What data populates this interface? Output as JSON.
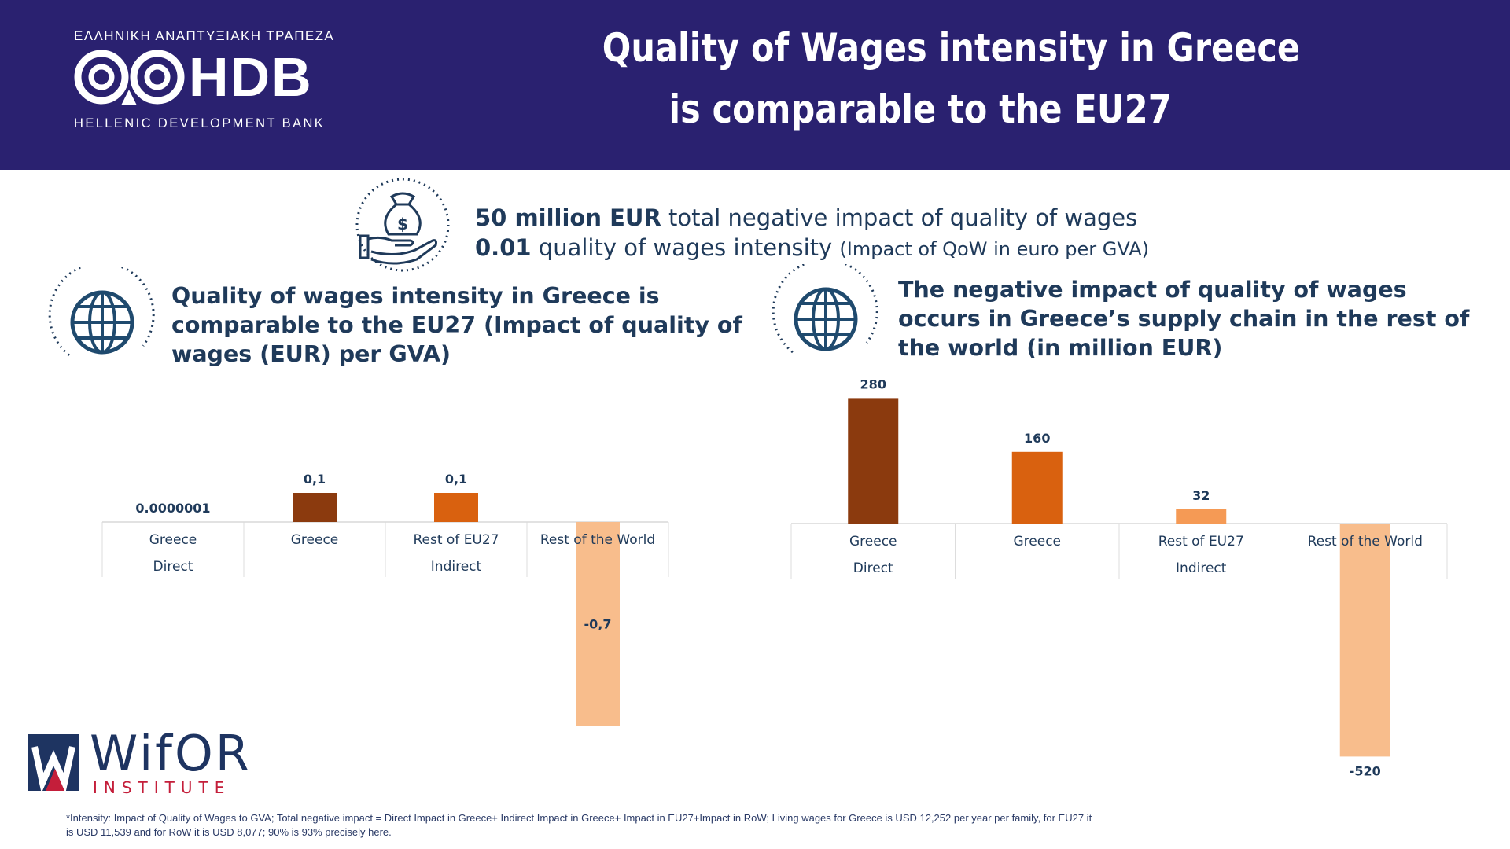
{
  "header": {
    "logo_greek": "ΕΛΛΗΝΙΚΗ ΑΝΑΠΤΥΞΙΑΚΗ ΤΡΑΠΕΖΑ",
    "logo_letters": "HDB",
    "logo_english": "HELLENIC DEVELOPMENT BANK",
    "title_line1": "Quality of Wages intensity in Greece",
    "title_line2": "is comparable to the EU27",
    "background_color": "#2a2170"
  },
  "summary": {
    "icon": "money-bag-hand-icon",
    "line1_bold": "50 million EUR",
    "line1_rest": " total negative impact of quality of wages",
    "line2_bold": "0.01",
    "line2_rest": " quality of wages intensity ",
    "line2_small": "(Impact of QoW in euro per GVA)"
  },
  "left_panel": {
    "icon": "globe-icon",
    "title_line1": "Quality of wages intensity in Greece is",
    "title_line2": "comparable to the EU27 (Impact of quality of",
    "title_line3": "wages (EUR) per GVA)"
  },
  "right_panel": {
    "icon": "globe-icon",
    "title_line1": "The negative impact of quality of wages",
    "title_line2": "occurs in Greece’s supply chain in the rest of",
    "title_line3": "the world (in million EUR)"
  },
  "chart_data": [
    {
      "type": "bar",
      "categories": [
        "Greece",
        "Greece",
        "Rest of EU27",
        "Rest of the World"
      ],
      "groups": [
        {
          "label": "Direct",
          "categories": [
            "Greece"
          ]
        },
        {
          "label": "Indirect",
          "categories": [
            "Greece",
            "Rest of EU27",
            "Rest of the World"
          ]
        }
      ],
      "values": [
        1e-07,
        0.1,
        0.1,
        -0.7
      ],
      "data_labels": [
        "0.0000001",
        "0,1",
        "0,1",
        "-0,7"
      ],
      "colors": [
        "#8b3a0e",
        "#8b3a0e",
        "#d9610f",
        "#f8bd8c"
      ],
      "ylim": [
        -0.7,
        0.1
      ]
    },
    {
      "type": "bar",
      "categories": [
        "Greece",
        "Greece",
        "Rest of EU27",
        "Rest of the World"
      ],
      "groups": [
        {
          "label": "Direct",
          "categories": [
            "Greece"
          ]
        },
        {
          "label": "Indirect",
          "categories": [
            "Greece",
            "Rest of EU27",
            "Rest of the World"
          ]
        }
      ],
      "values": [
        280,
        160,
        32,
        -520
      ],
      "data_labels": [
        "280",
        "160",
        "32",
        "-520"
      ],
      "colors": [
        "#8b3a0e",
        "#d9610f",
        "#f59a55",
        "#f8bd8c"
      ],
      "ylim": [
        -520,
        280
      ]
    }
  ],
  "footer": {
    "wifor_word": "WifOR",
    "wifor_sub": "INSTITUTE",
    "footnote_line1": "*Intensity: Impact of Quality of Wages to GVA; Total negative impact = Direct Impact in Greece+ Indirect Impact in Greece+ Impact in EU27+Impact in RoW; Living wages for Greece is USD 12,252 per year per family, for EU27 it",
    "footnote_line2": "is USD 11,539 and for RoW it is USD 8,077; 90% is 93% precisely here."
  }
}
